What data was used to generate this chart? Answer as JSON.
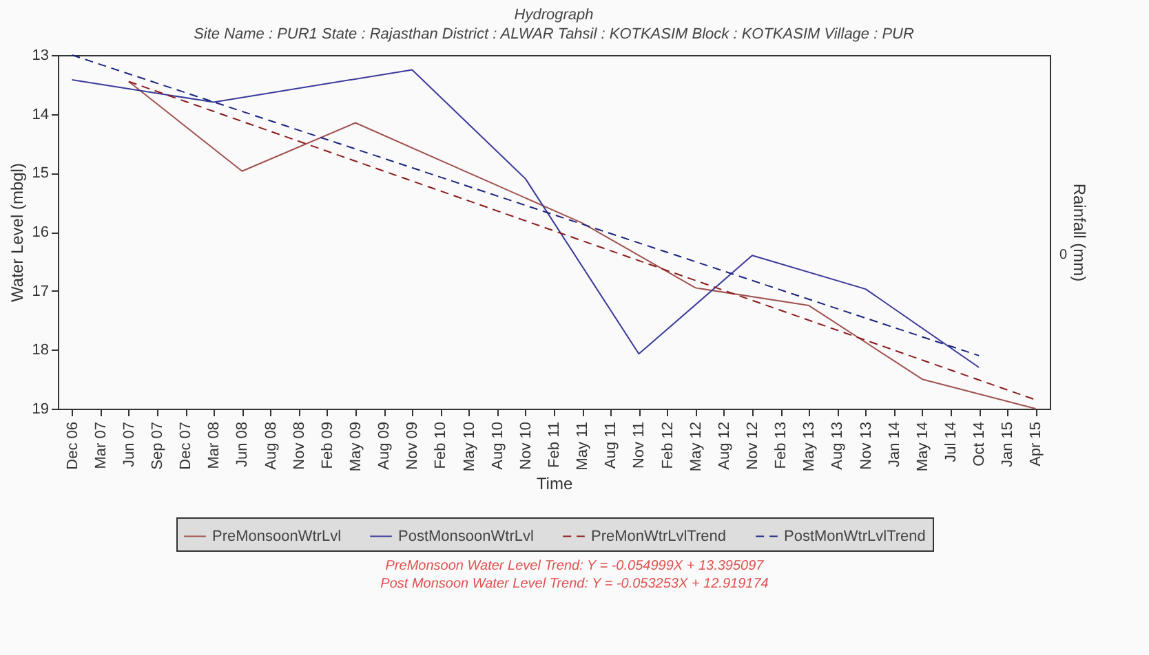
{
  "chart_data": {
    "type": "line",
    "title": "Hydrograph",
    "subtitle": "Site Name : PUR1  State : Rajasthan District : ALWAR  Tahsil : KOTKASIM  Block : KOTKASIM Village : PUR",
    "xlabel": "Time",
    "ylabel": "Water Level (mbgl)",
    "y2label": "Rainfall (mm)",
    "categories": [
      "Dec 06",
      "Mar 07",
      "Jun 07",
      "Sep 07",
      "Dec 07",
      "Mar 08",
      "Jun 08",
      "Aug 08",
      "Nov 08",
      "Feb 09",
      "May 09",
      "Aug 09",
      "Nov 09",
      "Feb 10",
      "May 10",
      "Aug 10",
      "Nov 10",
      "Feb 11",
      "May 11",
      "Aug 11",
      "Nov 11",
      "Feb 12",
      "May 12",
      "Aug 12",
      "Nov 12",
      "Feb 13",
      "May 13",
      "Aug 13",
      "Nov 13",
      "Jan 14",
      "May 14",
      "Jul 14",
      "Oct 14",
      "Jan 15",
      "Apr 15"
    ],
    "ylim": [
      19,
      13
    ],
    "yticks": [
      13,
      14,
      15,
      16,
      17,
      18,
      19
    ],
    "legend": "bottom",
    "grid": false,
    "series": [
      {
        "name": "PreMonsoonWtrLvl",
        "color": "#a0524f",
        "line_style": "solid",
        "x": [
          "Jun 07",
          "Jun 08",
          "May 09",
          "May 10",
          "May 11",
          "May 12",
          "May 13",
          "May 14",
          "Apr 15"
        ],
        "values": [
          13.45,
          14.97,
          14.15,
          15.0,
          15.85,
          16.95,
          17.25,
          18.5,
          19.0
        ]
      },
      {
        "name": "PostMonsoonWtrLvl",
        "color": "#3a3a9a",
        "line_style": "solid",
        "x": [
          "Dec 06",
          "Mar 08",
          "Nov 09",
          "Nov 10",
          "Nov 11",
          "Nov 12",
          "Nov 13",
          "Oct 14"
        ],
        "values": [
          13.42,
          13.8,
          13.25,
          15.1,
          18.07,
          16.4,
          16.97,
          18.3
        ]
      },
      {
        "name": "PreMonWtrLvlTrend",
        "color": "#8b1a1a",
        "line_style": "dashed",
        "x": [
          "Jun 07",
          "Apr 15"
        ],
        "values": [
          13.45,
          18.85
        ]
      },
      {
        "name": "PostMonWtrLvlTrend",
        "color": "#1a237e",
        "line_style": "dashed",
        "x": [
          "Dec 06",
          "Oct 14"
        ],
        "values": [
          13.0,
          18.1
        ]
      }
    ],
    "annotations": [
      "0",
      "PreMonsoon Water Level Trend: Y = -0.054999X + 13.395097",
      "Post Monsoon Water Level Trend: Y = -0.053253X + 12.919174"
    ]
  }
}
